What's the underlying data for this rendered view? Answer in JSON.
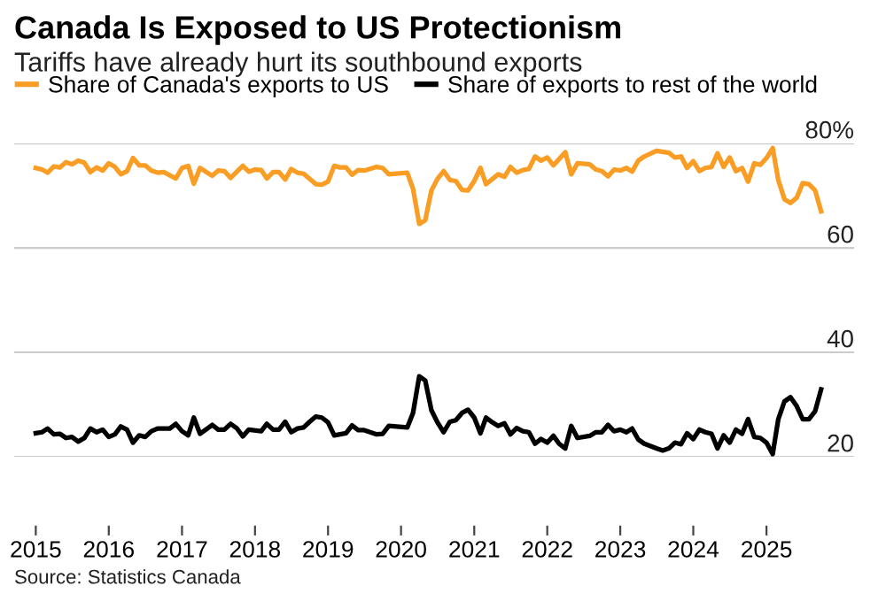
{
  "chart_data": {
    "type": "line",
    "title": "Canada Is Exposed to US Protectionism",
    "subtitle": "Tariffs have already hurt its southbound exports",
    "series": [
      {
        "name": "Share of Canada's exports to US",
        "color": "#f99d25",
        "x": [
          "2015-01",
          "2015-02",
          "2015-03",
          "2015-04",
          "2015-05",
          "2015-06",
          "2015-07",
          "2015-08",
          "2015-09",
          "2015-10",
          "2015-11",
          "2015-12",
          "2016-01",
          "2016-02",
          "2016-03",
          "2016-04",
          "2016-05",
          "2016-06",
          "2016-07",
          "2016-08",
          "2016-09",
          "2016-10",
          "2016-12",
          "2017-01",
          "2017-02",
          "2017-03",
          "2017-04",
          "2017-06",
          "2017-07",
          "2017-08",
          "2017-09",
          "2017-11",
          "2017-12",
          "2018-01",
          "2018-02",
          "2018-03",
          "2018-04",
          "2018-05",
          "2018-06",
          "2018-07",
          "2018-08",
          "2018-09",
          "2018-11",
          "2018-12",
          "2019-01",
          "2019-02",
          "2019-03",
          "2019-04",
          "2019-05",
          "2019-06",
          "2019-07",
          "2019-09",
          "2019-10",
          "2019-11",
          "2020-02",
          "2020-03",
          "2020-04",
          "2020-05",
          "2020-06",
          "2020-07",
          "2020-08",
          "2020-09",
          "2020-10",
          "2020-11",
          "2020-12",
          "2021-01",
          "2021-02",
          "2021-03",
          "2021-05",
          "2021-06",
          "2021-07",
          "2021-08",
          "2021-09",
          "2021-10",
          "2021-11",
          "2021-12",
          "2022-01",
          "2022-02",
          "2022-04",
          "2022-05",
          "2022-06",
          "2022-08",
          "2022-09",
          "2022-10",
          "2022-11",
          "2022-12",
          "2023-01",
          "2023-02",
          "2023-03",
          "2023-04",
          "2023-05",
          "2023-07",
          "2023-09",
          "2023-10",
          "2023-11",
          "2023-12",
          "2024-01",
          "2024-02",
          "2024-03",
          "2024-04",
          "2024-05",
          "2024-06",
          "2024-07",
          "2024-08",
          "2024-09",
          "2024-10",
          "2024-11",
          "2024-12",
          "2025-01",
          "2025-02",
          "2025-03",
          "2025-04",
          "2025-05",
          "2025-06",
          "2025-07",
          "2025-08",
          "2025-09",
          "2025-10"
        ],
        "values": [
          75.3,
          75.0,
          74.4,
          75.6,
          75.4,
          76.4,
          76.0,
          76.7,
          76.3,
          74.5,
          75.4,
          74.8,
          76.2,
          75.5,
          74.1,
          74.7,
          77.2,
          75.8,
          75.8,
          74.8,
          74.4,
          74.5,
          73.3,
          75.3,
          75.7,
          72.3,
          75.3,
          73.8,
          74.8,
          74.7,
          73.4,
          75.7,
          74.6,
          75.0,
          74.9,
          73.3,
          74.5,
          74.5,
          73.1,
          75.1,
          74.4,
          74.2,
          72.2,
          72.1,
          72.7,
          75.7,
          75.4,
          75.4,
          74.0,
          74.9,
          74.8,
          75.5,
          75.3,
          74.1,
          74.4,
          71.3,
          64.6,
          65.3,
          71.0,
          73.2,
          74.7,
          73.0,
          72.8,
          71.1,
          71.0,
          72.8,
          75.3,
          72.2,
          74.1,
          73.6,
          75.5,
          74.4,
          74.9,
          75.1,
          77.5,
          76.7,
          77.3,
          75.8,
          78.3,
          74.1,
          76.2,
          76.0,
          75.0,
          74.7,
          73.7,
          75.0,
          74.8,
          75.3,
          74.6,
          76.7,
          77.5,
          78.6,
          78.2,
          77.3,
          77.5,
          75.3,
          76.6,
          74.7,
          75.3,
          75.5,
          78.1,
          75.5,
          77.3,
          74.7,
          75.3,
          72.7,
          76.2,
          75.9,
          77.2,
          79.1,
          73.0,
          69.3,
          68.6,
          69.6,
          72.4,
          72.2,
          71.0,
          67.0
        ]
      },
      {
        "name": "Share of exports to rest of the world",
        "color": "#000000",
        "x": [
          "2015-01",
          "2015-02",
          "2015-03",
          "2015-04",
          "2015-05",
          "2015-06",
          "2015-07",
          "2015-08",
          "2015-09",
          "2015-10",
          "2015-11",
          "2015-12",
          "2016-01",
          "2016-02",
          "2016-03",
          "2016-04",
          "2016-05",
          "2016-06",
          "2016-07",
          "2016-08",
          "2016-09",
          "2016-11",
          "2016-12",
          "2017-01",
          "2017-02",
          "2017-03",
          "2017-04",
          "2017-06",
          "2017-07",
          "2017-08",
          "2017-09",
          "2017-10",
          "2017-11",
          "2017-12",
          "2018-02",
          "2018-03",
          "2018-04",
          "2018-05",
          "2018-06",
          "2018-07",
          "2018-08",
          "2018-09",
          "2018-10",
          "2018-11",
          "2018-12",
          "2019-01",
          "2019-02",
          "2019-04",
          "2019-05",
          "2019-06",
          "2019-07",
          "2019-09",
          "2019-10",
          "2019-11",
          "2020-02",
          "2020-03",
          "2020-04",
          "2020-05",
          "2020-06",
          "2020-07",
          "2020-08",
          "2020-09",
          "2020-10",
          "2020-11",
          "2020-12",
          "2021-01",
          "2021-02",
          "2021-03",
          "2021-04",
          "2021-05",
          "2021-06",
          "2021-07",
          "2021-08",
          "2021-09",
          "2021-10",
          "2021-11",
          "2021-12",
          "2022-01",
          "2022-02",
          "2022-03",
          "2022-04",
          "2022-05",
          "2022-06",
          "2022-08",
          "2022-09",
          "2022-10",
          "2022-11",
          "2022-12",
          "2023-01",
          "2023-02",
          "2023-03",
          "2023-04",
          "2023-05",
          "2023-07",
          "2023-08",
          "2023-09",
          "2023-10",
          "2023-11",
          "2023-12",
          "2024-01",
          "2024-02",
          "2024-03",
          "2024-04",
          "2024-05",
          "2024-06",
          "2024-07",
          "2024-08",
          "2024-09",
          "2024-10",
          "2024-11",
          "2024-12",
          "2025-01",
          "2025-02",
          "2025-03",
          "2025-04",
          "2025-05",
          "2025-06",
          "2025-07",
          "2025-08",
          "2025-09",
          "2025-10"
        ],
        "values": [
          24.5,
          24.7,
          25.4,
          24.3,
          24.4,
          23.6,
          23.8,
          22.9,
          23.6,
          25.4,
          24.7,
          25.2,
          23.8,
          24.3,
          25.8,
          25.2,
          22.7,
          24.1,
          23.8,
          24.9,
          25.4,
          25.4,
          26.3,
          24.9,
          24.1,
          27.5,
          24.4,
          26.1,
          25.2,
          25.2,
          26.3,
          25.5,
          23.9,
          25.2,
          24.9,
          26.3,
          25.2,
          25.2,
          26.7,
          24.7,
          25.4,
          25.6,
          26.7,
          27.7,
          27.5,
          26.6,
          24.1,
          24.5,
          26.0,
          25.1,
          25.1,
          24.3,
          24.4,
          25.9,
          25.6,
          28.4,
          35.4,
          34.6,
          28.9,
          26.6,
          24.7,
          26.7,
          27.0,
          28.4,
          29.0,
          27.5,
          24.5,
          27.5,
          26.6,
          25.9,
          26.4,
          24.3,
          25.5,
          24.9,
          24.7,
          22.5,
          23.4,
          22.7,
          24.0,
          22.5,
          21.6,
          25.9,
          23.6,
          24.0,
          24.7,
          24.7,
          26.1,
          24.9,
          25.2,
          24.7,
          25.4,
          23.3,
          22.5,
          21.6,
          21.2,
          21.6,
          22.7,
          22.4,
          24.5,
          23.4,
          25.2,
          24.7,
          24.4,
          21.6,
          24.1,
          22.7,
          25.2,
          24.4,
          27.2,
          23.8,
          23.6,
          22.7,
          20.5,
          27.2,
          30.6,
          31.4,
          29.7,
          27.2,
          27.2,
          28.7,
          32.9
        ]
      }
    ],
    "xlim": [
      "2014-09-15",
      "2026-03-15"
    ],
    "xticks": [
      {
        "value": "2015-01-01",
        "label": "2015"
      },
      {
        "value": "2016-01-01",
        "label": "2016"
      },
      {
        "value": "2017-01-01",
        "label": "2017"
      },
      {
        "value": "2018-01-01",
        "label": "2018"
      },
      {
        "value": "2019-01-01",
        "label": "2019"
      },
      {
        "value": "2020-01-01",
        "label": "2020"
      },
      {
        "value": "2021-01-01",
        "label": "2021"
      },
      {
        "value": "2022-01-01",
        "label": "2022"
      },
      {
        "value": "2023-01-01",
        "label": "2023"
      },
      {
        "value": "2024-01-01",
        "label": "2024"
      },
      {
        "value": "2025-01-01",
        "label": "2025"
      }
    ],
    "ylim": [
      20,
      80
    ],
    "yticks": [
      20,
      40,
      60,
      {
        "value": 80,
        "label": "80%"
      }
    ],
    "grid": "y",
    "legend": "top left",
    "marker": "none",
    "line_style": "solid",
    "annotations": [
      "Source: Statistics Canada"
    ]
  }
}
